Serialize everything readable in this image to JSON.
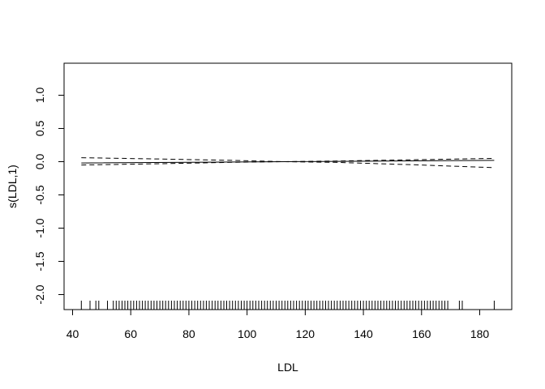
{
  "chart_data": {
    "type": "line",
    "title": "",
    "xlabel": "LDL",
    "ylabel": "s(LDL,1)",
    "xlim": [
      40,
      190
    ],
    "ylim": [
      -2.2,
      1.45
    ],
    "x_ticks": [
      "40",
      "60",
      "80",
      "100",
      "120",
      "140",
      "160",
      "180"
    ],
    "y_ticks": [
      "-2.0",
      "-1.5",
      "-1.0",
      "-0.5",
      "0.0",
      "0.5",
      "1.0"
    ],
    "grid": false,
    "series": [
      {
        "style": "solid",
        "points": [
          [
            43,
            -0.02
          ],
          [
            113,
            0.0
          ],
          [
            185,
            0.02
          ]
        ]
      },
      {
        "style": "dashed",
        "points": [
          [
            43,
            0.06
          ],
          [
            70,
            0.04
          ],
          [
            95,
            0.02
          ],
          [
            113,
            0.0
          ],
          [
            130,
            0.01
          ],
          [
            160,
            0.03
          ],
          [
            185,
            0.05
          ]
        ]
      },
      {
        "style": "dashed",
        "points": [
          [
            43,
            -0.05
          ],
          [
            70,
            -0.03
          ],
          [
            95,
            -0.01
          ],
          [
            113,
            0.0
          ],
          [
            130,
            -0.01
          ],
          [
            160,
            -0.05
          ],
          [
            185,
            -0.09
          ]
        ]
      }
    ],
    "rug": [
      43,
      46,
      48,
      49,
      52,
      54,
      55,
      56,
      57,
      58,
      59,
      60,
      61,
      62,
      63,
      64,
      65,
      66,
      67,
      68,
      69,
      70,
      71,
      72,
      73,
      74,
      75,
      76,
      77,
      78,
      79,
      80,
      81,
      82,
      83,
      84,
      85,
      86,
      87,
      88,
      89,
      90,
      91,
      92,
      93,
      94,
      95,
      96,
      97,
      98,
      99,
      100,
      101,
      102,
      103,
      104,
      105,
      106,
      107,
      108,
      109,
      110,
      111,
      112,
      113,
      114,
      115,
      116,
      117,
      118,
      119,
      120,
      121,
      122,
      123,
      124,
      125,
      126,
      127,
      128,
      129,
      130,
      131,
      132,
      133,
      134,
      135,
      136,
      137,
      138,
      139,
      140,
      141,
      142,
      143,
      144,
      145,
      146,
      147,
      148,
      149,
      150,
      151,
      152,
      153,
      154,
      155,
      156,
      157,
      158,
      159,
      160,
      161,
      162,
      163,
      164,
      165,
      166,
      167,
      168,
      169,
      173,
      174,
      185
    ]
  }
}
